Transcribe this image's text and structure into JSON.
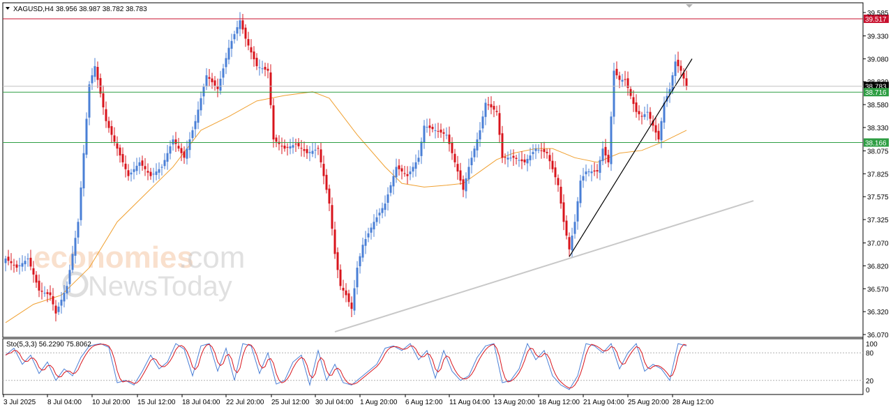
{
  "chart_data": [
    {
      "type": "candlestick",
      "symbol_label": "XAGUSD,H4",
      "ohlc_label": "38.956 38.987 38.782 38.783",
      "current_price": 38.783,
      "y_ticks": [
        "39.585",
        "39.330",
        "39.080",
        "38.830",
        "38.580",
        "38.330",
        "38.075",
        "37.825",
        "37.575",
        "37.325",
        "37.070",
        "36.820",
        "36.570",
        "36.320",
        "36.070"
      ],
      "x_ticks": [
        "3 Jul 2025",
        "8 Jul 04:00",
        "10 Jul 20:00",
        "15 Jul 12:00",
        "18 Jul 04:00",
        "22 Jul 20:00",
        "25 Jul 12:00",
        "30 Jul 04:00",
        "1 Aug 20:00",
        "6 Aug 12:00",
        "11 Aug 04:00",
        "13 Aug 20:00",
        "18 Aug 12:00",
        "21 Aug 04:00",
        "25 Aug 20:00",
        "28 Aug 12:00"
      ],
      "levels": [
        {
          "value": "39.517",
          "color": "#c8102e"
        },
        {
          "value": "38.783",
          "color": "#000000"
        },
        {
          "value": "38.716",
          "color": "#2e9e43"
        },
        {
          "value": "38.166",
          "color": "#2e9e43"
        }
      ],
      "grey_level": 38.78,
      "colors": {
        "up": "#4a7fd6",
        "down": "#d8141c",
        "ma": "#f0a030",
        "trend_black": "#000000",
        "trend_grey": "#c8c8c8"
      },
      "close_anchors": [
        [
          0,
          36.9
        ],
        [
          4,
          36.8
        ],
        [
          8,
          36.9
        ],
        [
          12,
          36.55
        ],
        [
          16,
          36.5
        ],
        [
          18,
          36.3
        ],
        [
          22,
          36.6
        ],
        [
          26,
          37.3
        ],
        [
          30,
          38.8
        ],
        [
          32,
          39.0
        ],
        [
          36,
          38.4
        ],
        [
          40,
          38.1
        ],
        [
          44,
          37.8
        ],
        [
          48,
          37.95
        ],
        [
          52,
          37.8
        ],
        [
          56,
          37.9
        ],
        [
          60,
          38.2
        ],
        [
          64,
          38.0
        ],
        [
          68,
          38.4
        ],
        [
          72,
          38.9
        ],
        [
          76,
          38.75
        ],
        [
          80,
          39.2
        ],
        [
          84,
          39.5
        ],
        [
          86,
          39.3
        ],
        [
          90,
          39.0
        ],
        [
          94,
          38.95
        ],
        [
          96,
          38.2
        ],
        [
          100,
          38.1
        ],
        [
          104,
          38.15
        ],
        [
          108,
          38.05
        ],
        [
          112,
          38.1
        ],
        [
          114,
          37.8
        ],
        [
          116,
          37.5
        ],
        [
          118,
          36.95
        ],
        [
          120,
          36.6
        ],
        [
          122,
          36.5
        ],
        [
          124,
          36.35
        ],
        [
          126,
          36.8
        ],
        [
          128,
          37.05
        ],
        [
          132,
          37.3
        ],
        [
          136,
          37.5
        ],
        [
          140,
          37.9
        ],
        [
          144,
          37.8
        ],
        [
          148,
          38.0
        ],
        [
          150,
          38.35
        ],
        [
          154,
          38.3
        ],
        [
          158,
          38.25
        ],
        [
          162,
          37.85
        ],
        [
          164,
          37.65
        ],
        [
          166,
          37.9
        ],
        [
          170,
          38.3
        ],
        [
          172,
          38.6
        ],
        [
          176,
          38.5
        ],
        [
          178,
          38.0
        ],
        [
          182,
          38.0
        ],
        [
          186,
          37.95
        ],
        [
          190,
          38.1
        ],
        [
          194,
          38.05
        ],
        [
          198,
          37.7
        ],
        [
          200,
          37.3
        ],
        [
          202,
          37.0
        ],
        [
          204,
          37.3
        ],
        [
          206,
          37.75
        ],
        [
          208,
          37.85
        ],
        [
          212,
          37.85
        ],
        [
          214,
          38.1
        ],
        [
          216,
          37.95
        ],
        [
          218,
          38.95
        ],
        [
          220,
          38.85
        ],
        [
          222,
          38.85
        ],
        [
          226,
          38.5
        ],
        [
          228,
          38.45
        ],
        [
          230,
          38.5
        ],
        [
          232,
          38.35
        ],
        [
          234,
          38.2
        ],
        [
          236,
          38.6
        ],
        [
          238,
          38.75
        ],
        [
          240,
          39.05
        ],
        [
          242,
          38.95
        ],
        [
          244,
          38.78
        ]
      ],
      "ma_points": [
        [
          0,
          36.2
        ],
        [
          10,
          36.4
        ],
        [
          20,
          36.5
        ],
        [
          30,
          36.8
        ],
        [
          40,
          37.3
        ],
        [
          50,
          37.6
        ],
        [
          60,
          37.9
        ],
        [
          70,
          38.3
        ],
        [
          80,
          38.45
        ],
        [
          90,
          38.62
        ],
        [
          100,
          38.68
        ],
        [
          110,
          38.72
        ],
        [
          116,
          38.65
        ],
        [
          126,
          38.25
        ],
        [
          136,
          37.9
        ],
        [
          142,
          37.72
        ],
        [
          150,
          37.68
        ],
        [
          158,
          37.7
        ],
        [
          164,
          37.72
        ],
        [
          170,
          37.85
        ],
        [
          176,
          37.98
        ],
        [
          182,
          38.05
        ],
        [
          190,
          38.1
        ],
        [
          196,
          38.1
        ],
        [
          204,
          38.0
        ],
        [
          212,
          37.95
        ],
        [
          220,
          38.05
        ],
        [
          228,
          38.08
        ],
        [
          236,
          38.18
        ],
        [
          244,
          38.3
        ]
      ],
      "trend_black": [
        [
          202,
          36.92
        ],
        [
          246,
          39.08
        ]
      ],
      "trend_grey": [
        [
          118,
          36.1
        ],
        [
          268,
          37.53
        ]
      ],
      "candle_count": 245
    },
    {
      "type": "line",
      "indicator_label": "Sto(5,3,3) 56.2290 75.8062",
      "y_ticks": [
        "100",
        "80",
        "20",
        "0"
      ],
      "levels": [
        80,
        20
      ],
      "colors": {
        "main": "#4a7fd6",
        "signal": "#d8141c"
      },
      "main_anchors": [
        [
          0,
          75
        ],
        [
          3,
          90
        ],
        [
          6,
          55
        ],
        [
          9,
          75
        ],
        [
          12,
          35
        ],
        [
          15,
          60
        ],
        [
          18,
          20
        ],
        [
          21,
          45
        ],
        [
          24,
          30
        ],
        [
          27,
          70
        ],
        [
          30,
          95
        ],
        [
          34,
          100
        ],
        [
          37,
          92
        ],
        [
          40,
          15
        ],
        [
          43,
          20
        ],
        [
          46,
          10
        ],
        [
          49,
          40
        ],
        [
          52,
          75
        ],
        [
          55,
          45
        ],
        [
          58,
          60
        ],
        [
          61,
          100
        ],
        [
          64,
          88
        ],
        [
          67,
          30
        ],
        [
          70,
          95
        ],
        [
          73,
          100
        ],
        [
          76,
          40
        ],
        [
          79,
          90
        ],
        [
          82,
          20
        ],
        [
          85,
          100
        ],
        [
          88,
          95
        ],
        [
          91,
          35
        ],
        [
          94,
          80
        ],
        [
          97,
          12
        ],
        [
          100,
          20
        ],
        [
          103,
          60
        ],
        [
          106,
          75
        ],
        [
          109,
          10
        ],
        [
          112,
          85
        ],
        [
          115,
          20
        ],
        [
          118,
          55
        ],
        [
          121,
          15
        ],
        [
          124,
          10
        ],
        [
          127,
          25
        ],
        [
          130,
          40
        ],
        [
          133,
          55
        ],
        [
          136,
          90
        ],
        [
          139,
          95
        ],
        [
          142,
          85
        ],
        [
          145,
          100
        ],
        [
          148,
          65
        ],
        [
          151,
          85
        ],
        [
          154,
          25
        ],
        [
          157,
          85
        ],
        [
          160,
          40
        ],
        [
          163,
          20
        ],
        [
          166,
          30
        ],
        [
          169,
          70
        ],
        [
          172,
          95
        ],
        [
          175,
          100
        ],
        [
          178,
          15
        ],
        [
          181,
          20
        ],
        [
          184,
          45
        ],
        [
          187,
          100
        ],
        [
          190,
          65
        ],
        [
          193,
          85
        ],
        [
          196,
          30
        ],
        [
          199,
          10
        ],
        [
          202,
          0
        ],
        [
          205,
          30
        ],
        [
          208,
          100
        ],
        [
          211,
          95
        ],
        [
          214,
          80
        ],
        [
          217,
          100
        ],
        [
          220,
          45
        ],
        [
          223,
          80
        ],
        [
          226,
          100
        ],
        [
          229,
          40
        ],
        [
          232,
          55
        ],
        [
          235,
          45
        ],
        [
          238,
          20
        ],
        [
          241,
          100
        ],
        [
          244,
          95
        ],
        [
          245,
          56
        ]
      ]
    }
  ]
}
